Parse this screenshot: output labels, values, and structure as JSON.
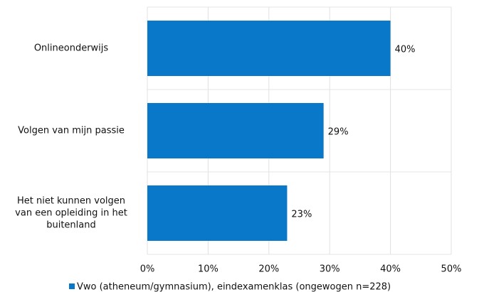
{
  "chart_data": {
    "type": "hbar",
    "categories": [
      "Onlineonderwijs",
      "Volgen van mijn passie",
      "Het niet kunnen volgen van een opleiding in het buitenland"
    ],
    "series": [
      {
        "name": "Vwo (atheneum/gymnasium), eindexamenklas (ongewogen n=228)",
        "color": "#0a78c8",
        "values": [
          40,
          29,
          23
        ],
        "value_labels": [
          "40%",
          "29%",
          "23%"
        ]
      }
    ],
    "xlim": [
      0,
      50
    ],
    "xticks": [
      {
        "value": 0,
        "label": "0%"
      },
      {
        "value": 10,
        "label": "10%"
      },
      {
        "value": 20,
        "label": "20%"
      },
      {
        "value": 30,
        "label": "30%"
      },
      {
        "value": 40,
        "label": "40%"
      },
      {
        "value": 50,
        "label": "50%"
      }
    ],
    "grid": true,
    "legend": "bottom"
  }
}
